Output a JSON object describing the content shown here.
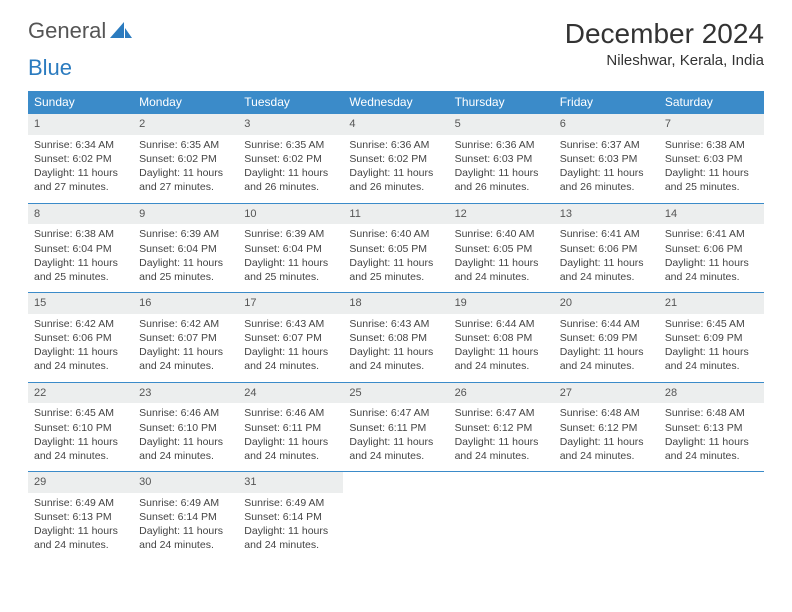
{
  "logo": {
    "text_a": "General",
    "text_b": "Blue"
  },
  "title": "December 2024",
  "location": "Nileshwar, Kerala, India",
  "colors": {
    "header_bg": "#3b8bc9",
    "header_text": "#ffffff",
    "daynum_bg": "#eceeee",
    "row_divider": "#3b8bc9",
    "text": "#444444",
    "background": "#ffffff"
  },
  "weekdays": [
    "Sunday",
    "Monday",
    "Tuesday",
    "Wednesday",
    "Thursday",
    "Friday",
    "Saturday"
  ],
  "weeks": [
    [
      {
        "n": "1",
        "sr": "6:34 AM",
        "ss": "6:02 PM",
        "dl": "11 hours and 27 minutes."
      },
      {
        "n": "2",
        "sr": "6:35 AM",
        "ss": "6:02 PM",
        "dl": "11 hours and 27 minutes."
      },
      {
        "n": "3",
        "sr": "6:35 AM",
        "ss": "6:02 PM",
        "dl": "11 hours and 26 minutes."
      },
      {
        "n": "4",
        "sr": "6:36 AM",
        "ss": "6:02 PM",
        "dl": "11 hours and 26 minutes."
      },
      {
        "n": "5",
        "sr": "6:36 AM",
        "ss": "6:03 PM",
        "dl": "11 hours and 26 minutes."
      },
      {
        "n": "6",
        "sr": "6:37 AM",
        "ss": "6:03 PM",
        "dl": "11 hours and 26 minutes."
      },
      {
        "n": "7",
        "sr": "6:38 AM",
        "ss": "6:03 PM",
        "dl": "11 hours and 25 minutes."
      }
    ],
    [
      {
        "n": "8",
        "sr": "6:38 AM",
        "ss": "6:04 PM",
        "dl": "11 hours and 25 minutes."
      },
      {
        "n": "9",
        "sr": "6:39 AM",
        "ss": "6:04 PM",
        "dl": "11 hours and 25 minutes."
      },
      {
        "n": "10",
        "sr": "6:39 AM",
        "ss": "6:04 PM",
        "dl": "11 hours and 25 minutes."
      },
      {
        "n": "11",
        "sr": "6:40 AM",
        "ss": "6:05 PM",
        "dl": "11 hours and 25 minutes."
      },
      {
        "n": "12",
        "sr": "6:40 AM",
        "ss": "6:05 PM",
        "dl": "11 hours and 24 minutes."
      },
      {
        "n": "13",
        "sr": "6:41 AM",
        "ss": "6:06 PM",
        "dl": "11 hours and 24 minutes."
      },
      {
        "n": "14",
        "sr": "6:41 AM",
        "ss": "6:06 PM",
        "dl": "11 hours and 24 minutes."
      }
    ],
    [
      {
        "n": "15",
        "sr": "6:42 AM",
        "ss": "6:06 PM",
        "dl": "11 hours and 24 minutes."
      },
      {
        "n": "16",
        "sr": "6:42 AM",
        "ss": "6:07 PM",
        "dl": "11 hours and 24 minutes."
      },
      {
        "n": "17",
        "sr": "6:43 AM",
        "ss": "6:07 PM",
        "dl": "11 hours and 24 minutes."
      },
      {
        "n": "18",
        "sr": "6:43 AM",
        "ss": "6:08 PM",
        "dl": "11 hours and 24 minutes."
      },
      {
        "n": "19",
        "sr": "6:44 AM",
        "ss": "6:08 PM",
        "dl": "11 hours and 24 minutes."
      },
      {
        "n": "20",
        "sr": "6:44 AM",
        "ss": "6:09 PM",
        "dl": "11 hours and 24 minutes."
      },
      {
        "n": "21",
        "sr": "6:45 AM",
        "ss": "6:09 PM",
        "dl": "11 hours and 24 minutes."
      }
    ],
    [
      {
        "n": "22",
        "sr": "6:45 AM",
        "ss": "6:10 PM",
        "dl": "11 hours and 24 minutes."
      },
      {
        "n": "23",
        "sr": "6:46 AM",
        "ss": "6:10 PM",
        "dl": "11 hours and 24 minutes."
      },
      {
        "n": "24",
        "sr": "6:46 AM",
        "ss": "6:11 PM",
        "dl": "11 hours and 24 minutes."
      },
      {
        "n": "25",
        "sr": "6:47 AM",
        "ss": "6:11 PM",
        "dl": "11 hours and 24 minutes."
      },
      {
        "n": "26",
        "sr": "6:47 AM",
        "ss": "6:12 PM",
        "dl": "11 hours and 24 minutes."
      },
      {
        "n": "27",
        "sr": "6:48 AM",
        "ss": "6:12 PM",
        "dl": "11 hours and 24 minutes."
      },
      {
        "n": "28",
        "sr": "6:48 AM",
        "ss": "6:13 PM",
        "dl": "11 hours and 24 minutes."
      }
    ],
    [
      {
        "n": "29",
        "sr": "6:49 AM",
        "ss": "6:13 PM",
        "dl": "11 hours and 24 minutes."
      },
      {
        "n": "30",
        "sr": "6:49 AM",
        "ss": "6:14 PM",
        "dl": "11 hours and 24 minutes."
      },
      {
        "n": "31",
        "sr": "6:49 AM",
        "ss": "6:14 PM",
        "dl": "11 hours and 24 minutes."
      },
      null,
      null,
      null,
      null
    ]
  ],
  "labels": {
    "sunrise": "Sunrise:",
    "sunset": "Sunset:",
    "daylight": "Daylight:"
  }
}
